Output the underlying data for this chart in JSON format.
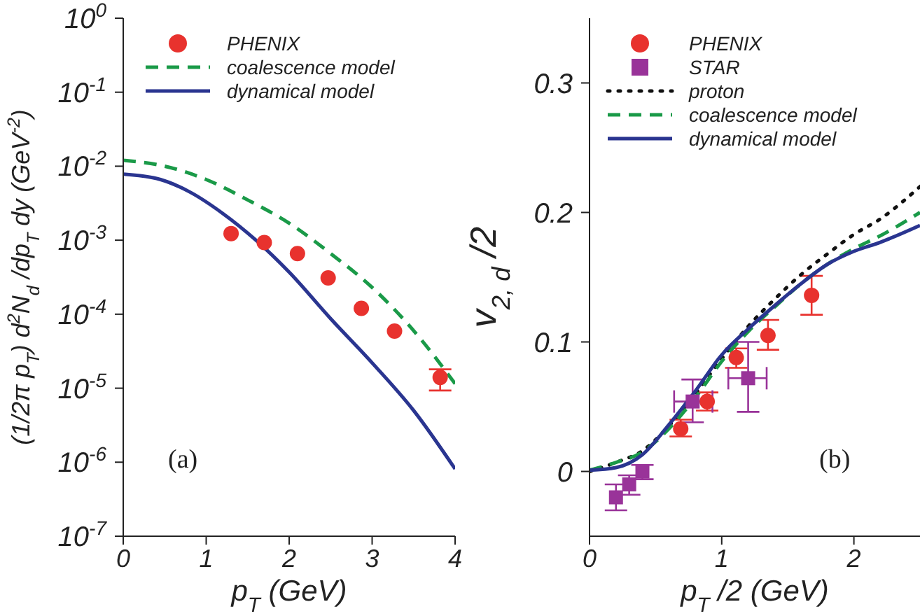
{
  "chart_data": [
    {
      "type": "line",
      "xlabel": "p$_{T}$  (GeV)",
      "ylabel": "(1/2π p$_{T}$) d$^{2}$N$_{d}$ /dp$_{T}$ dy  (GeV$^{-2}$)",
      "log": "y",
      "xlim": [
        0,
        4
      ],
      "xticks": [
        0,
        1,
        2,
        3,
        4
      ],
      "ylim": [
        1e-07,
        1
      ],
      "yticks": [
        {
          "value": 1e-07,
          "label": "10$^{-7}$"
        },
        {
          "value": 1e-06,
          "label": "10$^{-6}$"
        },
        {
          "value": 1e-05,
          "label": "10$^{-5}$"
        },
        {
          "value": 0.0001,
          "label": "10$^{-4}$"
        },
        {
          "value": 0.001,
          "label": "10$^{-3}$"
        },
        {
          "value": 0.01,
          "label": "10$^{-2}$"
        },
        {
          "value": 0.1,
          "label": "10$^{-1}$"
        },
        {
          "value": 1,
          "label": "10$^{0}$"
        }
      ],
      "legend": "top left",
      "grid": false,
      "annotations": [
        "(a)"
      ],
      "series": [
        {
          "name": "PHENIX",
          "type": "scatter",
          "marker": "circle",
          "color": "#e8322e",
          "x": [
            1.3,
            1.7,
            2.1,
            2.47,
            2.87,
            3.27,
            3.82
          ],
          "values": [
            0.00123,
            0.00093,
            0.00066,
            0.00031,
            0.00012,
            5.9e-05,
            1.4e-05
          ],
          "errors": [
            null,
            null,
            null,
            null,
            null,
            null,
            [
              9.3e-06,
              1.8e-05
            ]
          ]
        },
        {
          "name": "coalescence model",
          "type": "line",
          "line_style": "dashed",
          "color": "#1a9a48",
          "x": [
            0,
            0.5,
            1,
            1.5,
            2,
            2.5,
            3,
            3.5,
            4
          ],
          "values": [
            0.012,
            0.01,
            0.0066,
            0.0035,
            0.0017,
            0.00066,
            0.00023,
            6e-05,
            1.15e-05
          ]
        },
        {
          "name": "dynamical model",
          "type": "line",
          "line_style": "solid",
          "color": "#2a3590",
          "x": [
            0,
            0.45,
            0.8,
            1.2,
            1.6,
            2,
            2.5,
            3,
            3.5,
            4
          ],
          "values": [
            0.0078,
            0.0066,
            0.0045,
            0.0023,
            0.001,
            0.00037,
            8.7e-05,
            2.2e-05,
            5e-06,
            8.1e-07
          ]
        }
      ]
    },
    {
      "type": "line",
      "xlabel": "p$_{T}$ /2  (GeV)",
      "ylabel": "v$_{2, d}$ /2",
      "xlim": [
        0,
        2.5
      ],
      "xticks": [
        0,
        1,
        2
      ],
      "ylim": [
        -0.05,
        0.35
      ],
      "yticks": [
        0,
        0.1,
        0.2,
        0.3
      ],
      "legend": "top left",
      "grid": false,
      "annotations": [
        "(b)"
      ],
      "series": [
        {
          "name": "PHENIX",
          "type": "scatter",
          "marker": "circle",
          "color": "#e8322e",
          "x": [
            0.69,
            0.89,
            1.11,
            1.35,
            1.68
          ],
          "values": [
            0.033,
            0.054,
            0.088,
            0.105,
            0.136
          ],
          "errors": [
            [
              0.027,
              0.04
            ],
            [
              0.047,
              0.061
            ],
            [
              0.08,
              0.095
            ],
            [
              0.094,
              0.117
            ],
            [
              0.121,
              0.151
            ]
          ]
        },
        {
          "name": "STAR",
          "type": "scatter",
          "marker": "square",
          "color": "#993399",
          "x": [
            0.2,
            0.3,
            0.4,
            0.78,
            1.2
          ],
          "values": [
            -0.02,
            -0.01,
            0,
            0.054,
            0.072
          ],
          "errors": [
            [
              -0.03,
              -0.01
            ],
            [
              -0.018,
              -0.003
            ],
            [
              -0.006,
              0.005
            ],
            [
              0.038,
              0.071
            ],
            [
              0.046,
              0.1
            ]
          ],
          "xerrors": [
            null,
            null,
            null,
            [
              0.64,
              0.93
            ],
            [
              1.05,
              1.34
            ]
          ]
        },
        {
          "name": "proton",
          "type": "line",
          "line_style": "dotted",
          "color": "#111111",
          "x": [
            0,
            0.2,
            0.4,
            0.6,
            0.8,
            1,
            1.2,
            1.4,
            1.6,
            1.8,
            2,
            2.2,
            2.5
          ],
          "values": [
            0,
            0.007,
            0.016,
            0.035,
            0.06,
            0.087,
            0.112,
            0.133,
            0.152,
            0.168,
            0.183,
            0.195,
            0.22
          ]
        },
        {
          "name": "coalescence model",
          "type": "line",
          "line_style": "dashed",
          "color": "#1a9a48",
          "x": [
            0,
            0.2,
            0.4,
            0.6,
            0.8,
            1,
            1.2,
            1.4,
            1.6,
            1.8,
            2,
            2.2,
            2.5
          ],
          "values": [
            0.001,
            0.007,
            0.015,
            0.033,
            0.057,
            0.085,
            0.108,
            0.127,
            0.145,
            0.16,
            0.172,
            0.182,
            0.2
          ]
        },
        {
          "name": "dynamical model",
          "type": "line",
          "line_style": "solid",
          "color": "#2a3590",
          "x": [
            0,
            0.2,
            0.4,
            0.6,
            0.8,
            1,
            1.2,
            1.4,
            1.6,
            1.8,
            2,
            2.2,
            2.5
          ],
          "values": [
            0.001,
            0.003,
            0.013,
            0.036,
            0.062,
            0.09,
            0.11,
            0.128,
            0.145,
            0.16,
            0.17,
            0.177,
            0.19
          ]
        }
      ]
    }
  ]
}
